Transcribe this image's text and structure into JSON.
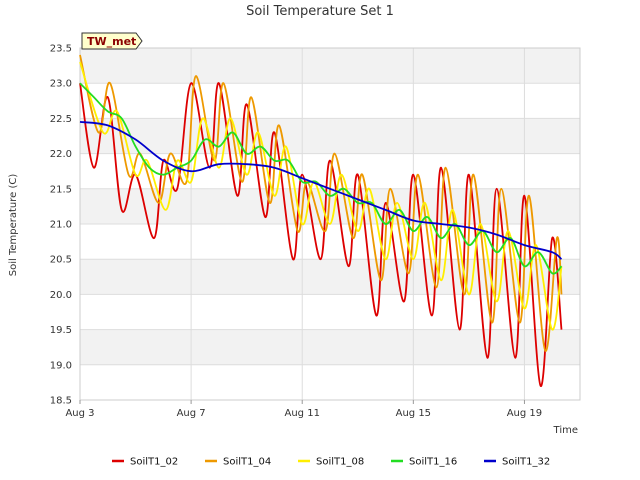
{
  "chart_data": {
    "type": "line",
    "title": "Soil Temperature Set 1",
    "xlabel": "Time",
    "ylabel": "Soil Temperature (C)",
    "badge": "TW_met",
    "xlim": [
      "2023-08-03",
      "2023-08-21"
    ],
    "ylim": [
      18.5,
      23.5
    ],
    "yticks": [
      18.5,
      19.0,
      19.5,
      20.0,
      20.5,
      21.0,
      21.5,
      22.0,
      22.5,
      23.0,
      23.5
    ],
    "xticks": [
      {
        "date": "2023-08-03",
        "label": "Aug 3"
      },
      {
        "date": "2023-08-07",
        "label": "Aug 7"
      },
      {
        "date": "2023-08-11",
        "label": "Aug 11"
      },
      {
        "date": "2023-08-15",
        "label": "Aug 15"
      },
      {
        "date": "2023-08-19",
        "label": "Aug 19"
      }
    ],
    "grid": true,
    "legend_position": "bottom",
    "series": [
      {
        "name": "SoilT1_02",
        "color": "#dd0000",
        "points": [
          [
            "2023-08-03 00:00",
            23.0
          ],
          [
            "2023-08-03 12:00",
            21.8
          ],
          [
            "2023-08-04 00:00",
            22.8
          ],
          [
            "2023-08-04 12:00",
            21.2
          ],
          [
            "2023-08-05 00:00",
            21.7
          ],
          [
            "2023-08-05 16:00",
            20.8
          ],
          [
            "2023-08-06 00:00",
            21.9
          ],
          [
            "2023-08-06 12:00",
            21.5
          ],
          [
            "2023-08-07 00:00",
            23.0
          ],
          [
            "2023-08-07 16:00",
            21.8
          ],
          [
            "2023-08-08 00:00",
            23.0
          ],
          [
            "2023-08-08 16:00",
            21.4
          ],
          [
            "2023-08-09 00:00",
            22.7
          ],
          [
            "2023-08-09 16:00",
            21.1
          ],
          [
            "2023-08-10 00:00",
            22.3
          ],
          [
            "2023-08-10 16:00",
            20.5
          ],
          [
            "2023-08-11 00:00",
            21.7
          ],
          [
            "2023-08-11 16:00",
            20.5
          ],
          [
            "2023-08-12 00:00",
            21.9
          ],
          [
            "2023-08-12 16:00",
            20.4
          ],
          [
            "2023-08-13 00:00",
            21.7
          ],
          [
            "2023-08-13 16:00",
            19.7
          ],
          [
            "2023-08-14 00:00",
            21.3
          ],
          [
            "2023-08-14 16:00",
            19.9
          ],
          [
            "2023-08-15 00:00",
            21.7
          ],
          [
            "2023-08-15 16:00",
            19.7
          ],
          [
            "2023-08-16 00:00",
            21.8
          ],
          [
            "2023-08-16 16:00",
            19.5
          ],
          [
            "2023-08-17 00:00",
            21.7
          ],
          [
            "2023-08-17 16:00",
            19.1
          ],
          [
            "2023-08-18 00:00",
            21.5
          ],
          [
            "2023-08-18 16:00",
            19.1
          ],
          [
            "2023-08-19 00:00",
            21.4
          ],
          [
            "2023-08-19 14:00",
            18.7
          ],
          [
            "2023-08-20 00:00",
            20.8
          ],
          [
            "2023-08-20 08:00",
            19.5
          ]
        ]
      },
      {
        "name": "SoilT1_04",
        "color": "#ee9900",
        "points": [
          [
            "2023-08-03 00:00",
            23.4
          ],
          [
            "2023-08-03 16:00",
            22.3
          ],
          [
            "2023-08-04 02:00",
            23.0
          ],
          [
            "2023-08-04 18:00",
            21.7
          ],
          [
            "2023-08-05 04:00",
            22.0
          ],
          [
            "2023-08-05 20:00",
            21.3
          ],
          [
            "2023-08-06 06:00",
            22.0
          ],
          [
            "2023-08-06 20:00",
            21.6
          ],
          [
            "2023-08-07 04:00",
            23.1
          ],
          [
            "2023-08-07 20:00",
            21.9
          ],
          [
            "2023-08-08 04:00",
            23.0
          ],
          [
            "2023-08-08 20:00",
            21.6
          ],
          [
            "2023-08-09 04:00",
            22.8
          ],
          [
            "2023-08-09 20:00",
            21.3
          ],
          [
            "2023-08-10 04:00",
            22.4
          ],
          [
            "2023-08-10 20:00",
            20.9
          ],
          [
            "2023-08-11 04:00",
            21.6
          ],
          [
            "2023-08-11 20:00",
            20.9
          ],
          [
            "2023-08-12 04:00",
            22.0
          ],
          [
            "2023-08-12 20:00",
            20.8
          ],
          [
            "2023-08-13 04:00",
            21.7
          ],
          [
            "2023-08-13 20:00",
            20.2
          ],
          [
            "2023-08-14 04:00",
            21.5
          ],
          [
            "2023-08-14 20:00",
            20.3
          ],
          [
            "2023-08-15 04:00",
            21.7
          ],
          [
            "2023-08-15 20:00",
            20.1
          ],
          [
            "2023-08-16 04:00",
            21.8
          ],
          [
            "2023-08-16 20:00",
            20.0
          ],
          [
            "2023-08-17 04:00",
            21.7
          ],
          [
            "2023-08-17 20:00",
            19.6
          ],
          [
            "2023-08-18 04:00",
            21.5
          ],
          [
            "2023-08-18 20:00",
            19.6
          ],
          [
            "2023-08-19 04:00",
            21.4
          ],
          [
            "2023-08-19 18:00",
            19.2
          ],
          [
            "2023-08-20 04:00",
            20.8
          ],
          [
            "2023-08-20 08:00",
            20.0
          ]
        ]
      },
      {
        "name": "SoilT1_08",
        "color": "#ffee00",
        "points": [
          [
            "2023-08-03 00:00",
            23.3
          ],
          [
            "2023-08-03 20:00",
            22.3
          ],
          [
            "2023-08-04 08:00",
            22.6
          ],
          [
            "2023-08-05 00:00",
            21.7
          ],
          [
            "2023-08-05 10:00",
            21.9
          ],
          [
            "2023-08-06 02:00",
            21.2
          ],
          [
            "2023-08-06 12:00",
            21.9
          ],
          [
            "2023-08-07 00:00",
            21.6
          ],
          [
            "2023-08-07 10:00",
            22.5
          ],
          [
            "2023-08-08 00:00",
            21.8
          ],
          [
            "2023-08-08 10:00",
            22.5
          ],
          [
            "2023-08-09 00:00",
            21.7
          ],
          [
            "2023-08-09 10:00",
            22.3
          ],
          [
            "2023-08-10 00:00",
            21.4
          ],
          [
            "2023-08-10 10:00",
            22.1
          ],
          [
            "2023-08-11 00:00",
            21.0
          ],
          [
            "2023-08-11 10:00",
            21.6
          ],
          [
            "2023-08-12 00:00",
            21.0
          ],
          [
            "2023-08-12 10:00",
            21.7
          ],
          [
            "2023-08-13 00:00",
            20.9
          ],
          [
            "2023-08-13 10:00",
            21.5
          ],
          [
            "2023-08-14 00:00",
            20.5
          ],
          [
            "2023-08-14 10:00",
            21.3
          ],
          [
            "2023-08-15 00:00",
            20.5
          ],
          [
            "2023-08-15 10:00",
            21.3
          ],
          [
            "2023-08-16 00:00",
            20.2
          ],
          [
            "2023-08-16 10:00",
            21.2
          ],
          [
            "2023-08-17 00:00",
            20.0
          ],
          [
            "2023-08-17 10:00",
            21.0
          ],
          [
            "2023-08-18 00:00",
            19.9
          ],
          [
            "2023-08-18 10:00",
            20.9
          ],
          [
            "2023-08-19 00:00",
            19.8
          ],
          [
            "2023-08-19 10:00",
            20.7
          ],
          [
            "2023-08-20 00:00",
            19.5
          ],
          [
            "2023-08-20 08:00",
            20.4
          ]
        ]
      },
      {
        "name": "SoilT1_16",
        "color": "#22dd22",
        "points": [
          [
            "2023-08-03 00:00",
            23.0
          ],
          [
            "2023-08-03 12:00",
            22.8
          ],
          [
            "2023-08-04 00:00",
            22.6
          ],
          [
            "2023-08-04 12:00",
            22.5
          ],
          [
            "2023-08-05 00:00",
            22.1
          ],
          [
            "2023-08-05 12:00",
            21.8
          ],
          [
            "2023-08-06 00:00",
            21.7
          ],
          [
            "2023-08-06 12:00",
            21.8
          ],
          [
            "2023-08-07 00:00",
            21.9
          ],
          [
            "2023-08-07 12:00",
            22.2
          ],
          [
            "2023-08-08 00:00",
            22.1
          ],
          [
            "2023-08-08 12:00",
            22.3
          ],
          [
            "2023-08-09 00:00",
            22.0
          ],
          [
            "2023-08-09 12:00",
            22.1
          ],
          [
            "2023-08-10 00:00",
            21.9
          ],
          [
            "2023-08-10 12:00",
            21.9
          ],
          [
            "2023-08-11 00:00",
            21.6
          ],
          [
            "2023-08-11 12:00",
            21.6
          ],
          [
            "2023-08-12 00:00",
            21.4
          ],
          [
            "2023-08-12 12:00",
            21.5
          ],
          [
            "2023-08-13 00:00",
            21.3
          ],
          [
            "2023-08-13 12:00",
            21.3
          ],
          [
            "2023-08-14 00:00",
            21.0
          ],
          [
            "2023-08-14 12:00",
            21.2
          ],
          [
            "2023-08-15 00:00",
            20.9
          ],
          [
            "2023-08-15 12:00",
            21.1
          ],
          [
            "2023-08-16 00:00",
            20.8
          ],
          [
            "2023-08-16 12:00",
            21.0
          ],
          [
            "2023-08-17 00:00",
            20.7
          ],
          [
            "2023-08-17 12:00",
            20.9
          ],
          [
            "2023-08-18 00:00",
            20.6
          ],
          [
            "2023-08-18 12:00",
            20.8
          ],
          [
            "2023-08-19 00:00",
            20.4
          ],
          [
            "2023-08-19 12:00",
            20.6
          ],
          [
            "2023-08-20 00:00",
            20.3
          ],
          [
            "2023-08-20 08:00",
            20.4
          ]
        ]
      },
      {
        "name": "SoilT1_32",
        "color": "#0000cc",
        "points": [
          [
            "2023-08-03 00:00",
            22.45
          ],
          [
            "2023-08-04 00:00",
            22.4
          ],
          [
            "2023-08-05 00:00",
            22.2
          ],
          [
            "2023-08-06 00:00",
            21.9
          ],
          [
            "2023-08-07 00:00",
            21.75
          ],
          [
            "2023-08-08 00:00",
            21.85
          ],
          [
            "2023-08-09 00:00",
            21.85
          ],
          [
            "2023-08-10 00:00",
            21.8
          ],
          [
            "2023-08-11 00:00",
            21.65
          ],
          [
            "2023-08-12 00:00",
            21.5
          ],
          [
            "2023-08-13 00:00",
            21.35
          ],
          [
            "2023-08-14 00:00",
            21.2
          ],
          [
            "2023-08-15 00:00",
            21.05
          ],
          [
            "2023-08-16 00:00",
            21.0
          ],
          [
            "2023-08-17 00:00",
            20.95
          ],
          [
            "2023-08-18 00:00",
            20.85
          ],
          [
            "2023-08-19 00:00",
            20.7
          ],
          [
            "2023-08-20 00:00",
            20.6
          ],
          [
            "2023-08-20 08:00",
            20.5
          ]
        ]
      }
    ]
  }
}
